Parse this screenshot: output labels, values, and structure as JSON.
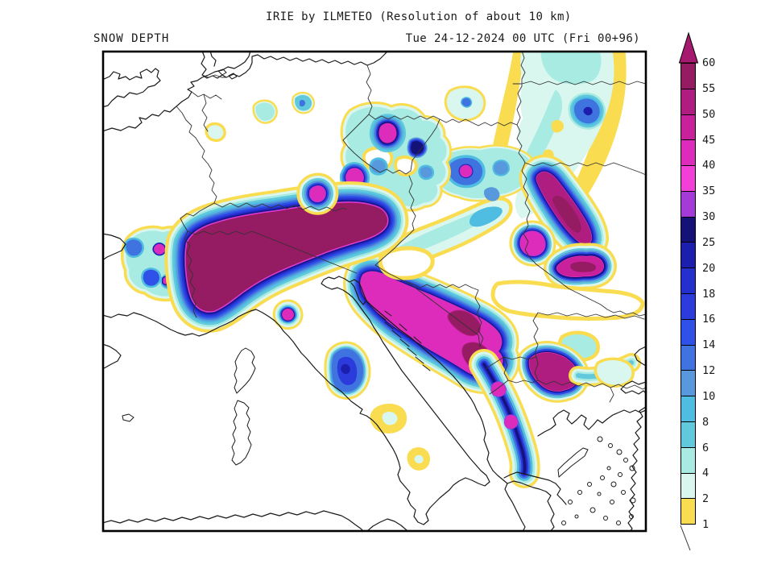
{
  "header": {
    "title": "IRIE by ILMETEO (Resolution of about 10 km)",
    "left_label": "SNOW DEPTH",
    "right_label": "Tue 24-12-2024 00 UTC (Fri 00+96)"
  },
  "legend": {
    "arrow_color": "#A51A6F",
    "tick_labels": [
      "60",
      "55",
      "50",
      "45",
      "40",
      "35",
      "30",
      "25",
      "20",
      "18",
      "16",
      "14",
      "12",
      "10",
      "8",
      "6",
      "4",
      "2",
      "1"
    ],
    "bands_top_to_bottom": [
      {
        "range": "55-60",
        "value": 55,
        "color": "#951B62"
      },
      {
        "range": "50-55",
        "value": 50,
        "color": "#B01D80"
      },
      {
        "range": "45-50",
        "value": 45,
        "color": "#C9219C"
      },
      {
        "range": "40-45",
        "value": 40,
        "color": "#DD2CBB"
      },
      {
        "range": "35-40",
        "value": 35,
        "color": "#F23FD8"
      },
      {
        "range": "30-35",
        "value": 30,
        "color": "#A43BD9"
      },
      {
        "range": "25-30",
        "value": 25,
        "color": "#141277"
      },
      {
        "range": "20-25",
        "value": 20,
        "color": "#1C1FAE"
      },
      {
        "range": "18-20",
        "value": 18,
        "color": "#2430CE"
      },
      {
        "range": "16-18",
        "value": 16,
        "color": "#2B3BDC"
      },
      {
        "range": "14-16",
        "value": 14,
        "color": "#2F51E8"
      },
      {
        "range": "12-14",
        "value": 12,
        "color": "#3E73E0"
      },
      {
        "range": "10-12",
        "value": 10,
        "color": "#5898DC"
      },
      {
        "range": "8-10",
        "value": 8,
        "color": "#4FBCE2"
      },
      {
        "range": "6-8",
        "value": 6,
        "color": "#62C8DC"
      },
      {
        "range": "4-6",
        "value": 4,
        "color": "#A8EBE2"
      },
      {
        "range": "2-4",
        "value": 2,
        "color": "#D9F7EF"
      },
      {
        "range": "1-2",
        "value": 1,
        "color": "#FADC50"
      }
    ]
  },
  "map": {
    "background": "#FFFFFF",
    "frame_color": "#000000",
    "coastline_color": "#1A1A1A",
    "border_color": "#333333"
  }
}
